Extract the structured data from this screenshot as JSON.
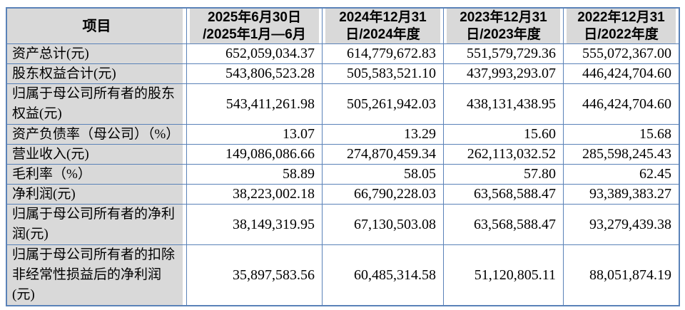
{
  "table": {
    "border_color": "#5a82b8",
    "header_bg": "#d9d9d9",
    "label_bg": "#d9d9d9",
    "header": {
      "item_label": "项目",
      "period_columns": [
        {
          "lines": [
            "2025年6月30日",
            "/2025年1月—6月"
          ]
        },
        {
          "lines": [
            "2024年12月31",
            "日/2024年度"
          ]
        },
        {
          "lines": [
            "2023年12月31",
            "日/2023年度"
          ]
        },
        {
          "lines": [
            "2022年12月31",
            "日/2022年度"
          ]
        }
      ]
    },
    "rows": [
      {
        "label": "资产总计(元)",
        "values": [
          "652,059,034.37",
          "614,779,672.83",
          "551,579,729.36",
          "555,072,367.00"
        ]
      },
      {
        "label": "股东权益合计(元)",
        "values": [
          "543,806,523.28",
          "505,583,521.10",
          "437,993,293.07",
          "446,424,704.60"
        ]
      },
      {
        "label": "归属于母公司所有者的股东权益(元)",
        "values": [
          "543,411,261.98",
          "505,261,942.03",
          "438,131,438.95",
          "446,424,704.60"
        ]
      },
      {
        "label": "资产负债率（母公司）（%）",
        "values": [
          "13.07",
          "13.29",
          "15.60",
          "15.68"
        ]
      },
      {
        "label": "营业收入(元)",
        "values": [
          "149,086,086.66",
          "274,870,459.34",
          "262,113,032.52",
          "285,598,245.43"
        ]
      },
      {
        "label": "毛利率（%）",
        "values": [
          "58.89",
          "58.05",
          "57.80",
          "62.45"
        ]
      },
      {
        "label": "净利润(元)",
        "values": [
          "38,223,002.18",
          "66,790,228.03",
          "63,568,588.47",
          "93,389,383.27"
        ]
      },
      {
        "label": "归属于母公司所有者的净利润(元)",
        "values": [
          "38,149,319.95",
          "67,130,503.08",
          "63,568,588.47",
          "93,279,439.38"
        ]
      },
      {
        "label": "归属于母公司所有者的扣除非经常性损益后的净利润(元)",
        "values": [
          "35,897,583.56",
          "60,485,314.58",
          "51,120,805.11",
          "88,051,874.19"
        ]
      }
    ]
  }
}
